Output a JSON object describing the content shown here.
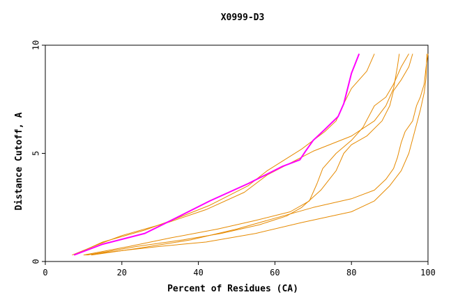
{
  "chart_data": {
    "type": "line",
    "title": "X0999-D3",
    "xlabel": "Percent of Residues (CA)",
    "ylabel": "Distance Cutoff, A",
    "xlim": [
      0,
      100
    ],
    "ylim": [
      0,
      10
    ],
    "x_ticks": [
      "0",
      "20",
      "40",
      "60",
      "80",
      "100"
    ],
    "y_ticks": [
      "0",
      "5",
      "10"
    ],
    "grid": false,
    "colors": {
      "highlight": "#ff00ff",
      "others": "#e68a00"
    },
    "series": [
      {
        "highlight": true,
        "points": [
          [
            7.5,
            0.3
          ],
          [
            15,
            0.8
          ],
          [
            26,
            1.3
          ],
          [
            34,
            2.0
          ],
          [
            43,
            2.8
          ],
          [
            53,
            3.6
          ],
          [
            62,
            4.4
          ],
          [
            66.5,
            4.7
          ],
          [
            68,
            5.1
          ],
          [
            70,
            5.6
          ],
          [
            73,
            6.1
          ],
          [
            76.5,
            6.7
          ],
          [
            78,
            7.3
          ],
          [
            79,
            8.0
          ],
          [
            80,
            8.7
          ],
          [
            82,
            9.6
          ]
        ]
      },
      {
        "highlight": false,
        "points": [
          [
            7.5,
            0.3
          ],
          [
            15,
            0.9
          ],
          [
            26,
            1.45
          ],
          [
            33,
            1.9
          ],
          [
            43,
            2.6
          ],
          [
            53,
            3.5
          ],
          [
            58,
            4.2
          ],
          [
            67,
            5.2
          ],
          [
            73,
            6.0
          ],
          [
            76,
            6.5
          ],
          [
            78,
            7.3
          ],
          [
            80,
            8.0
          ],
          [
            84,
            8.8
          ],
          [
            86,
            9.6
          ]
        ]
      },
      {
        "highlight": false,
        "points": [
          [
            7,
            0.3
          ],
          [
            14,
            0.8
          ],
          [
            20,
            1.2
          ],
          [
            32,
            1.8
          ],
          [
            42,
            2.4
          ],
          [
            52,
            3.2
          ],
          [
            58,
            4.0
          ],
          [
            70,
            5.1
          ],
          [
            80,
            5.8
          ],
          [
            86,
            6.5
          ],
          [
            89,
            7.2
          ],
          [
            91,
            8.0
          ],
          [
            92,
            9.0
          ],
          [
            92.5,
            9.6
          ]
        ]
      },
      {
        "highlight": false,
        "points": [
          [
            10,
            0.3
          ],
          [
            22,
            0.7
          ],
          [
            33,
            1.1
          ],
          [
            45,
            1.5
          ],
          [
            55,
            1.9
          ],
          [
            64,
            2.3
          ],
          [
            69,
            2.8
          ],
          [
            71,
            3.6
          ],
          [
            72.5,
            4.3
          ],
          [
            76,
            5.0
          ],
          [
            80,
            5.6
          ],
          [
            83,
            6.2
          ],
          [
            86,
            7.2
          ],
          [
            89,
            7.6
          ],
          [
            91,
            8.2
          ],
          [
            93,
            9.0
          ],
          [
            95,
            9.6
          ]
        ]
      },
      {
        "highlight": false,
        "points": [
          [
            11,
            0.3
          ],
          [
            24,
            0.7
          ],
          [
            36,
            1.0
          ],
          [
            46,
            1.3
          ],
          [
            56,
            1.7
          ],
          [
            63,
            2.1
          ],
          [
            67,
            2.5
          ],
          [
            72,
            3.3
          ],
          [
            76,
            4.2
          ],
          [
            78,
            5.0
          ],
          [
            80,
            5.4
          ],
          [
            84,
            5.8
          ],
          [
            88,
            6.5
          ],
          [
            90,
            7.2
          ],
          [
            91,
            7.9
          ],
          [
            93,
            8.4
          ],
          [
            95,
            9.0
          ],
          [
            96,
            9.6
          ]
        ]
      },
      {
        "highlight": false,
        "points": [
          [
            12,
            0.3
          ],
          [
            24,
            0.6
          ],
          [
            38,
            1.0
          ],
          [
            50,
            1.5
          ],
          [
            60,
            2.0
          ],
          [
            70,
            2.5
          ],
          [
            80,
            2.9
          ],
          [
            86,
            3.3
          ],
          [
            89,
            3.8
          ],
          [
            91,
            4.3
          ],
          [
            92,
            4.8
          ],
          [
            93,
            5.5
          ],
          [
            94,
            6.0
          ],
          [
            96,
            6.5
          ],
          [
            97,
            7.2
          ],
          [
            98,
            7.6
          ],
          [
            99,
            8.2
          ],
          [
            99.5,
            9.0
          ],
          [
            100,
            9.6
          ]
        ]
      },
      {
        "highlight": false,
        "points": [
          [
            10.5,
            0.3
          ],
          [
            20,
            0.5
          ],
          [
            30,
            0.7
          ],
          [
            42,
            0.9
          ],
          [
            55,
            1.3
          ],
          [
            67,
            1.8
          ],
          [
            80,
            2.3
          ],
          [
            86,
            2.8
          ],
          [
            90,
            3.5
          ],
          [
            93,
            4.2
          ],
          [
            95,
            5.0
          ],
          [
            96.5,
            6.0
          ],
          [
            98,
            7.0
          ],
          [
            99,
            7.8
          ],
          [
            99.5,
            8.5
          ],
          [
            99.7,
            9.6
          ]
        ]
      }
    ]
  }
}
